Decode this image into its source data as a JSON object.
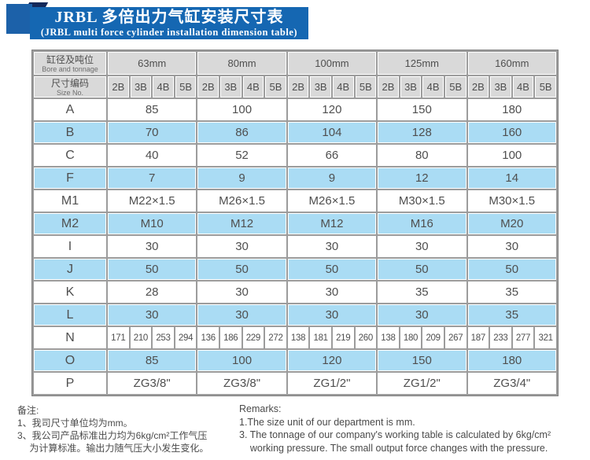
{
  "banner": {
    "title_zh": "JRBL 多倍出力气缸安装尺寸表",
    "title_en": "(JRBL multi force cylinder installation dimension table)"
  },
  "table": {
    "corner": {
      "row1_zh": "缸径及吨位",
      "row1_en": "Bore and tonnage",
      "row2_zh": "尺寸编码",
      "row2_en": "Size No."
    },
    "bore_sizes": [
      "63mm",
      "80mm",
      "100mm",
      "125mm",
      "160mm"
    ],
    "size_codes": [
      "2B",
      "3B",
      "4B",
      "5B"
    ],
    "rows": [
      {
        "label": "A",
        "values": [
          "85",
          "100",
          "120",
          "150",
          "180"
        ]
      },
      {
        "label": "B",
        "values": [
          "70",
          "86",
          "104",
          "128",
          "160"
        ]
      },
      {
        "label": "C",
        "values": [
          "40",
          "52",
          "66",
          "80",
          "100"
        ]
      },
      {
        "label": "F",
        "values": [
          "7",
          "9",
          "9",
          "12",
          "14"
        ]
      },
      {
        "label": "M1",
        "values": [
          "M22×1.5",
          "M26×1.5",
          "M26×1.5",
          "M30×1.5",
          "M30×1.5"
        ]
      },
      {
        "label": "M2",
        "values": [
          "M10",
          "M12",
          "M12",
          "M16",
          "M20"
        ]
      },
      {
        "label": "I",
        "values": [
          "30",
          "30",
          "30",
          "30",
          "30"
        ]
      },
      {
        "label": "J",
        "values": [
          "50",
          "50",
          "50",
          "50",
          "50"
        ]
      },
      {
        "label": "K",
        "values": [
          "28",
          "30",
          "30",
          "35",
          "35"
        ]
      },
      {
        "label": "L",
        "values": [
          "30",
          "30",
          "30",
          "30",
          "35"
        ]
      },
      {
        "label": "N",
        "values": [
          "171",
          "210",
          "253",
          "294",
          "136",
          "186",
          "229",
          "272",
          "138",
          "181",
          "219",
          "260",
          "138",
          "180",
          "209",
          "267",
          "187",
          "233",
          "277",
          "321"
        ]
      },
      {
        "label": "O",
        "values": [
          "85",
          "100",
          "120",
          "150",
          "180"
        ]
      },
      {
        "label": "P",
        "values": [
          "ZG3/8\"",
          "ZG3/8\"",
          "ZG1/2\"",
          "ZG1/2\"",
          "ZG3/4\""
        ]
      }
    ]
  },
  "notes_left": {
    "lines": [
      "备注:",
      "1、我司尺寸单位均为mm。",
      "3、我公司产品标准出力均为6kg/cm²工作气压",
      "　 为计算标准。输出力随气压大小发生变化。"
    ]
  },
  "notes_right": {
    "lines": [
      "Remarks:",
      "1.The size unit of our department is mm.",
      "3. The tonnage of our company's working table is calculated by 6kg/cm²",
      "    working pressure. The small output force changes with the pressure."
    ]
  },
  "colors": {
    "banner_blue": "#1567b2",
    "ribbon_square_blue": "#1c61a9",
    "ribbon_fold_navy": "#14295b",
    "header_gray": "#d9d9d9",
    "row_highlight_blue": "#aadcf4",
    "grid_gray": "#9c9c9c",
    "text_gray": "#4f4f4f"
  }
}
